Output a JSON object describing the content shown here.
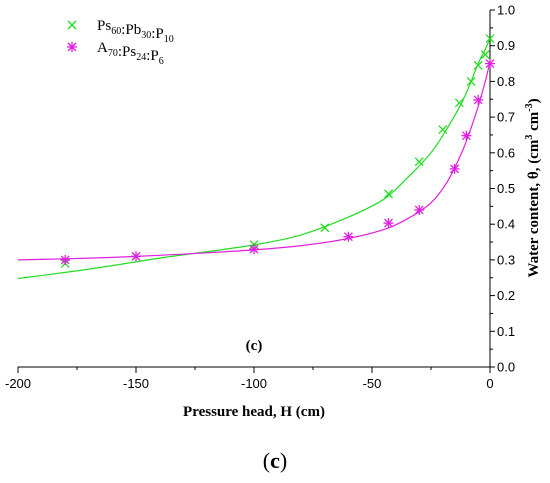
{
  "chart_data": {
    "type": "scatter",
    "title": "",
    "xlabel": "Pressure head, H (cm)",
    "ylabel_main": "Water content, θ, (cm",
    "ylabel_sup1": "3",
    "ylabel_mid": " cm",
    "ylabel_sup2": "-3",
    "ylabel_end": ")",
    "xlim": [
      -200,
      0
    ],
    "ylim": [
      0.0,
      1.0
    ],
    "xticks": [
      -200,
      -150,
      -100,
      -50,
      0
    ],
    "xtick_labels": [
      "-200",
      "-150",
      "-100",
      "-50",
      "0"
    ],
    "yticks": [
      0.0,
      0.1,
      0.2,
      0.3,
      0.4,
      0.5,
      0.6,
      0.7,
      0.8,
      0.9,
      1.0
    ],
    "ytick_labels": [
      "0.0",
      "0.1",
      "0.2",
      "0.3",
      "0.4",
      "0.5",
      "0.6",
      "0.7",
      "0.8",
      "0.9",
      "1.0"
    ],
    "x_axis_position": "top",
    "y_axis_position": "right",
    "grid": false,
    "legend_position": "top-left",
    "panel_label": "(c)",
    "series": [
      {
        "legend_parts": [
          {
            "t": "Ps",
            "s": "60"
          },
          {
            "t": ":Pb",
            "s": "30"
          },
          {
            "t": ":P",
            "s": "10"
          }
        ],
        "marker": "x",
        "color": "#22dd22",
        "points": [
          [
            -180,
            0.29
          ],
          [
            -150,
            0.31
          ],
          [
            -100,
            0.343
          ],
          [
            -70,
            0.39
          ],
          [
            -43,
            0.485
          ],
          [
            -30,
            0.575
          ],
          [
            -20,
            0.665
          ],
          [
            -13,
            0.74
          ],
          [
            -8,
            0.8
          ],
          [
            -5,
            0.845
          ],
          [
            -2,
            0.875
          ],
          [
            0,
            0.92
          ]
        ],
        "fit_curve": [
          [
            -200,
            0.248
          ],
          [
            -180,
            0.265
          ],
          [
            -160,
            0.284
          ],
          [
            -140,
            0.305
          ],
          [
            -120,
            0.323
          ],
          [
            -100,
            0.342
          ],
          [
            -80,
            0.37
          ],
          [
            -60,
            0.42
          ],
          [
            -45,
            0.47
          ],
          [
            -35,
            0.53
          ],
          [
            -25,
            0.6
          ],
          [
            -18,
            0.67
          ],
          [
            -12,
            0.74
          ],
          [
            -8,
            0.8
          ],
          [
            -5,
            0.85
          ],
          [
            -2,
            0.89
          ],
          [
            0,
            0.92
          ]
        ]
      },
      {
        "legend_parts": [
          {
            "t": "A",
            "s": "70"
          },
          {
            "t": ":Ps",
            "s": "24"
          },
          {
            "t": ":P",
            "s": "6"
          }
        ],
        "marker": "asterisk",
        "color": "#e020e0",
        "points": [
          [
            -180,
            0.3
          ],
          [
            -150,
            0.31
          ],
          [
            -100,
            0.33
          ],
          [
            -60,
            0.365
          ],
          [
            -43,
            0.403
          ],
          [
            -30,
            0.44
          ],
          [
            -15,
            0.555
          ],
          [
            -10,
            0.648
          ],
          [
            -5,
            0.748
          ],
          [
            0,
            0.85
          ]
        ],
        "fit_curve": [
          [
            -200,
            0.3
          ],
          [
            -180,
            0.303
          ],
          [
            -160,
            0.307
          ],
          [
            -140,
            0.313
          ],
          [
            -120,
            0.32
          ],
          [
            -100,
            0.328
          ],
          [
            -80,
            0.34
          ],
          [
            -60,
            0.36
          ],
          [
            -45,
            0.385
          ],
          [
            -35,
            0.415
          ],
          [
            -25,
            0.46
          ],
          [
            -18,
            0.52
          ],
          [
            -12,
            0.6
          ],
          [
            -8,
            0.67
          ],
          [
            -5,
            0.73
          ],
          [
            -2,
            0.8
          ],
          [
            0,
            0.855
          ]
        ]
      }
    ]
  },
  "caption": "(c)"
}
